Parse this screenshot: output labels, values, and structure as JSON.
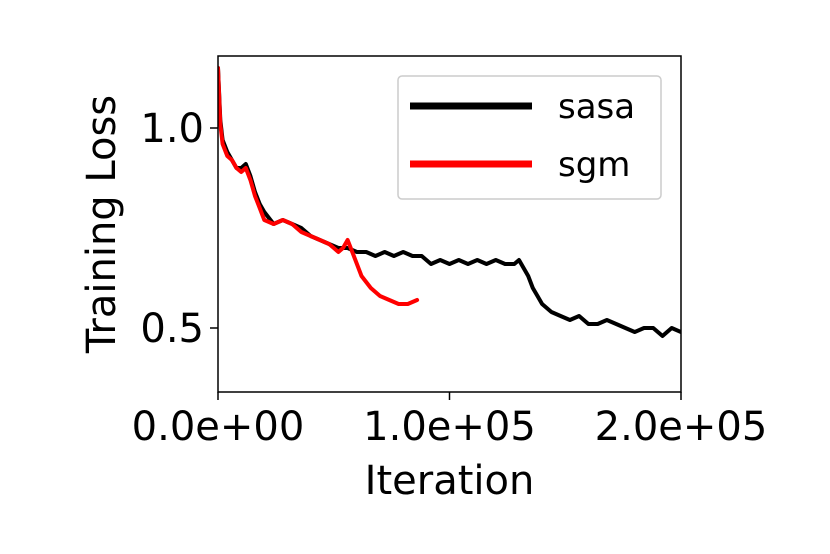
{
  "chart_data": {
    "type": "line",
    "title": "",
    "xlabel": "Iteration",
    "ylabel": "Training Loss",
    "xlim": [
      0,
      200000
    ],
    "ylim": [
      0.34,
      1.18
    ],
    "xticks": [
      0,
      100000,
      200000
    ],
    "xtick_labels": [
      "0.0e+00",
      "1.0e+05",
      "2.0e+05"
    ],
    "yticks": [
      0.5,
      1.0
    ],
    "ytick_labels": [
      "0.5",
      "1.0"
    ],
    "grid": false,
    "legend_position": "top-right",
    "series": [
      {
        "name": "sasa",
        "color": "#000000",
        "x": [
          0,
          1000,
          2000,
          4000,
          6000,
          8000,
          10000,
          12000,
          14000,
          16000,
          18000,
          20000,
          24000,
          28000,
          32000,
          36000,
          40000,
          44000,
          48000,
          52000,
          54000,
          56000,
          60000,
          64000,
          68000,
          72000,
          76000,
          80000,
          84000,
          88000,
          92000,
          96000,
          100000,
          104000,
          108000,
          112000,
          116000,
          120000,
          124000,
          128000,
          130000,
          132000,
          134000,
          136000,
          138000,
          140000,
          144000,
          148000,
          152000,
          156000,
          160000,
          164000,
          168000,
          172000,
          176000,
          180000,
          184000,
          188000,
          192000,
          196000,
          200000
        ],
        "y": [
          1.15,
          1.02,
          0.97,
          0.94,
          0.92,
          0.9,
          0.9,
          0.91,
          0.88,
          0.84,
          0.81,
          0.79,
          0.76,
          0.77,
          0.76,
          0.75,
          0.73,
          0.72,
          0.71,
          0.7,
          0.7,
          0.7,
          0.69,
          0.69,
          0.68,
          0.69,
          0.68,
          0.69,
          0.68,
          0.68,
          0.66,
          0.67,
          0.66,
          0.67,
          0.66,
          0.67,
          0.66,
          0.67,
          0.66,
          0.66,
          0.67,
          0.65,
          0.63,
          0.6,
          0.58,
          0.56,
          0.54,
          0.53,
          0.52,
          0.53,
          0.51,
          0.51,
          0.52,
          0.51,
          0.5,
          0.49,
          0.5,
          0.5,
          0.48,
          0.5,
          0.49
        ]
      },
      {
        "name": "sgm",
        "color": "#ff0000",
        "x": [
          0,
          1000,
          2000,
          4000,
          6000,
          8000,
          10000,
          12000,
          14000,
          16000,
          18000,
          20000,
          24000,
          28000,
          32000,
          36000,
          40000,
          44000,
          48000,
          50000,
          52000,
          54000,
          56000,
          58000,
          62000,
          66000,
          70000,
          74000,
          78000,
          82000,
          86000
        ],
        "y": [
          1.15,
          1.01,
          0.96,
          0.93,
          0.92,
          0.9,
          0.89,
          0.9,
          0.87,
          0.83,
          0.8,
          0.77,
          0.76,
          0.77,
          0.76,
          0.74,
          0.73,
          0.72,
          0.71,
          0.7,
          0.69,
          0.7,
          0.72,
          0.69,
          0.63,
          0.6,
          0.58,
          0.57,
          0.56,
          0.56,
          0.57
        ]
      }
    ]
  }
}
